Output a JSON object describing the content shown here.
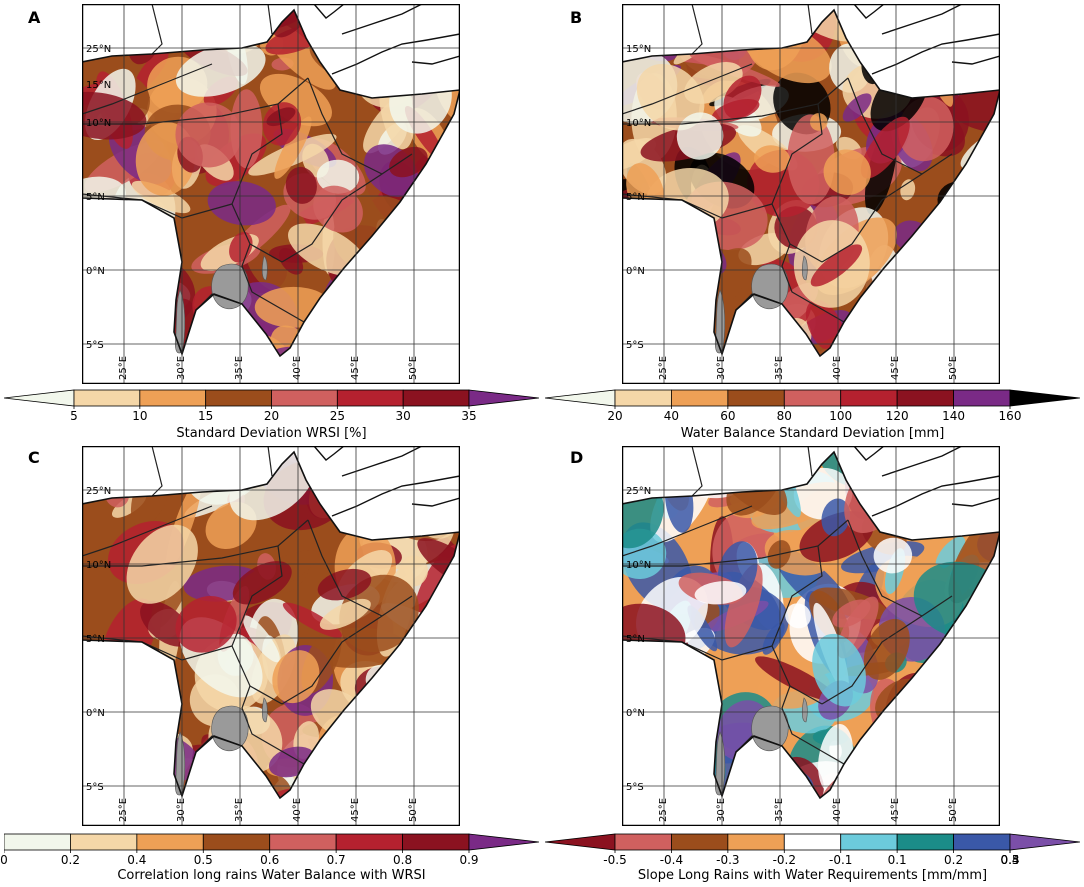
{
  "panels": [
    {
      "letter": "A",
      "lat_labels": [
        "25°N",
        "15°N",
        "10°N",
        "5°N",
        "0°N",
        "5°S"
      ],
      "lon_labels": [
        "25°E",
        "30°E",
        "35°E",
        "40°E",
        "45°E",
        "50°E"
      ],
      "palette": [
        "#f2f7ec",
        "#f5d7a8",
        "#eea056",
        "#9b4d1c",
        "#d0605f",
        "#b5212f",
        "#8b1220",
        "#7a2a86"
      ],
      "colorbar": {
        "label": "Standard Deviation WRSI [%]",
        "ticks": [
          "5",
          "10",
          "15",
          "20",
          "25",
          "30",
          "35"
        ],
        "colors": [
          "#f2f7ec",
          "#f5d7a8",
          "#eea056",
          "#9b4d1c",
          "#d0605f",
          "#b5212f",
          "#8b1220",
          "#7a2a86"
        ],
        "extend": "both"
      }
    },
    {
      "letter": "B",
      "lat_labels": [
        "15°N",
        "10°N",
        "5°N",
        "0°N",
        "5°S"
      ],
      "lon_labels": [
        "25°E",
        "30°E",
        "35°E",
        "40°E",
        "45°E",
        "50°E"
      ],
      "palette": [
        "#f2f7ec",
        "#f5d7a8",
        "#eea056",
        "#9b4d1c",
        "#d0605f",
        "#b5212f",
        "#8b1220",
        "#7a2a86",
        "#000000"
      ],
      "colorbar": {
        "label": "Water Balance Standard Deviation [mm]",
        "ticks": [
          "20",
          "40",
          "60",
          "80",
          "100",
          "120",
          "140",
          "160"
        ],
        "colors": [
          "#f2f7ec",
          "#f5d7a8",
          "#eea056",
          "#9b4d1c",
          "#d0605f",
          "#b5212f",
          "#8b1220",
          "#7a2a86",
          "#000000"
        ],
        "extend": "both"
      }
    },
    {
      "letter": "C",
      "lat_labels": [
        "25°N",
        "10°N",
        "5°N",
        "0°N",
        "5°S"
      ],
      "lon_labels": [
        "25°E",
        "30°E",
        "35°E",
        "40°E",
        "45°E",
        "50°E"
      ],
      "palette": [
        "#f2f7ec",
        "#f5d7a8",
        "#eea056",
        "#9b4d1c",
        "#d0605f",
        "#b5212f",
        "#8b1220",
        "#7a2a86"
      ],
      "colorbar": {
        "label": "Correlation long rains Water Balance with WRSI",
        "ticks": [
          "0",
          "0.2",
          "0.4",
          "0.5",
          "0.6",
          "0.7",
          "0.8",
          "0.9"
        ],
        "colors": [
          "#f2f7ec",
          "#f5d7a8",
          "#eea056",
          "#9b4d1c",
          "#d0605f",
          "#b5212f",
          "#8b1220",
          "#7a2a86"
        ],
        "extend": "max"
      }
    },
    {
      "letter": "D",
      "lat_labels": [
        "25°N",
        "10°N",
        "5°N",
        "0°N",
        "5°S"
      ],
      "lon_labels": [
        "25°E",
        "30°E",
        "35°E",
        "40°E",
        "45°E",
        "50°E"
      ],
      "palette": [
        "#8b1220",
        "#d0605f",
        "#9b4d1c",
        "#eea056",
        "#ffffff",
        "#6ccbdc",
        "#1b8c88",
        "#3a58a8",
        "#7b4fa8"
      ],
      "colorbar": {
        "label": "Slope Long Rains with Water Requirements [mm/mm]",
        "ticks": [
          "-0.5",
          "-0.4",
          "-0.3",
          "-0.2",
          "-0.1",
          "0.1",
          "0.2",
          "0.3",
          "0.4",
          "0.5"
        ],
        "colors": [
          "#8b1220",
          "#d0605f",
          "#9b4d1c",
          "#eea056",
          "#ffffff",
          "#6ccbdc",
          "#1b8c88",
          "#3a58a8",
          "#7b4fa8"
        ],
        "extend": "both"
      }
    }
  ]
}
